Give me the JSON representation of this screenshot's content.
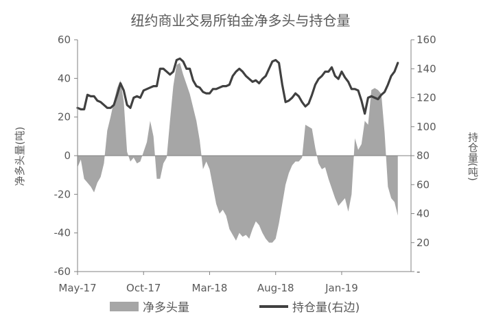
{
  "chart_data": {
    "type": "area+line",
    "title": "纽约商业交易所铂金净多头与持仓量",
    "ylabel_left": "净多头量(吨)",
    "ylabel_right": "持仓量(吨)",
    "y_left_ticks": [
      "60",
      "40",
      "20",
      "0",
      "-20",
      "-40",
      "-60"
    ],
    "y_right_ticks": [
      "160",
      "140",
      "120",
      "100",
      "80",
      "60",
      "40",
      "20",
      "-"
    ],
    "ylim_left": [
      -60,
      60
    ],
    "ylim_right": [
      0,
      160
    ],
    "x_ticks": [
      "May-17",
      "Oct-17",
      "Mar-18",
      "Aug-18",
      "Jan-19"
    ],
    "x_tick_positions": [
      0,
      20,
      40,
      60,
      80
    ],
    "x_range": [
      0,
      101
    ],
    "legend_position": "bottom",
    "series": [
      {
        "name": "净多头量",
        "type": "area",
        "axis": "left",
        "color": "#a6a6a6",
        "values": [
          -6,
          -2,
          -12,
          -14,
          -16,
          -19,
          -14,
          -11,
          -4,
          13,
          20,
          28,
          35,
          39,
          28,
          2,
          -3,
          -1,
          -4,
          -3,
          2,
          7,
          18,
          10,
          -12,
          -12,
          -4,
          -1,
          18,
          36,
          47,
          48,
          42,
          37,
          32,
          25,
          18,
          8,
          -7,
          -3,
          -7,
          -16,
          -25,
          -30,
          -28,
          -31,
          -38,
          -41,
          -44,
          -40,
          -42,
          -41,
          -43,
          -38,
          -34,
          -36,
          -40,
          -43,
          -45,
          -45,
          -43,
          -35,
          -25,
          -15,
          -9,
          -5,
          -3,
          -3,
          -1,
          16,
          15,
          14,
          4,
          -4,
          -7,
          -6,
          -12,
          -17,
          -22,
          -26,
          -24,
          -22,
          -29,
          -20,
          9,
          3,
          6,
          18,
          16,
          34,
          35,
          34,
          32,
          12,
          -16,
          -22,
          -24,
          -31
        ]
      },
      {
        "name": "持仓量(右边)",
        "type": "line",
        "axis": "right",
        "color": "#404040",
        "values": [
          113,
          112,
          112,
          122,
          121,
          121,
          118,
          117,
          115,
          113,
          113,
          115,
          122,
          130,
          125,
          115,
          113,
          120,
          121,
          120,
          125,
          126,
          127,
          128,
          128,
          140,
          140,
          138,
          136,
          138,
          146,
          147,
          145,
          140,
          140,
          132,
          128,
          127,
          124,
          123,
          123,
          126,
          126,
          127,
          128,
          128,
          129,
          135,
          138,
          140,
          138,
          135,
          133,
          131,
          132,
          130,
          133,
          135,
          140,
          145,
          146,
          144,
          129,
          117,
          118,
          120,
          123,
          121,
          117,
          114,
          116,
          122,
          129,
          133,
          135,
          138,
          138,
          141,
          135,
          133,
          138,
          134,
          131,
          126,
          126,
          125,
          118,
          109,
          120,
          121,
          120,
          119,
          122,
          124,
          129,
          135,
          138,
          144
        ]
      }
    ]
  },
  "legend": {
    "area_label": "净多头量",
    "line_label": "持仓量(右边)"
  }
}
